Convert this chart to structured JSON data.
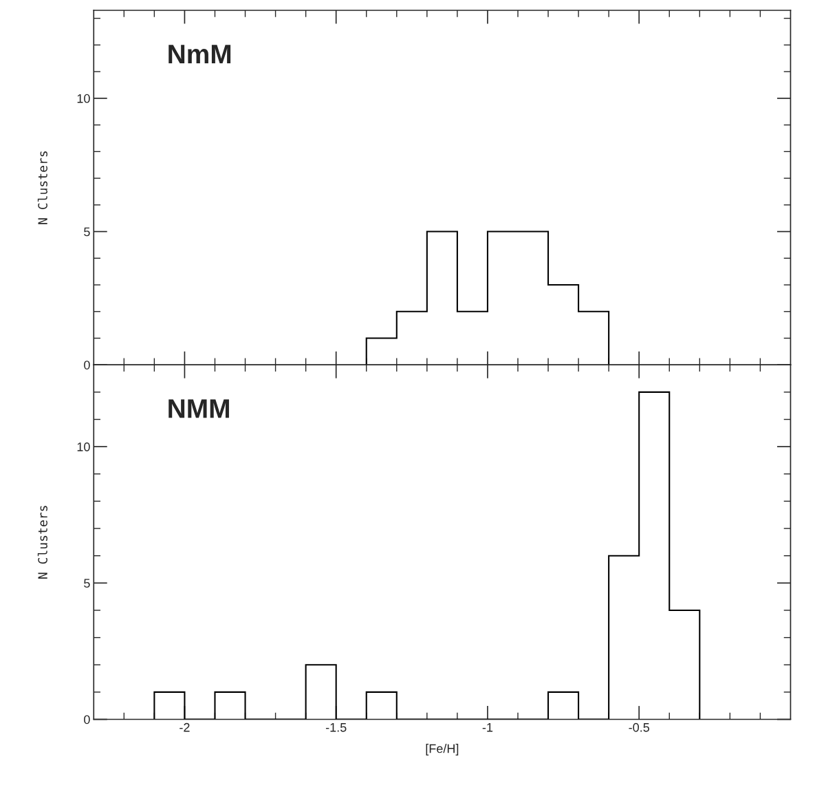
{
  "chart_data": [
    {
      "type": "histogram",
      "ylabel": "N Clusters",
      "annotations": [
        "NmM"
      ],
      "bins": [
        -1.4,
        -1.3,
        -1.2,
        -1.1,
        -1.0,
        -0.9,
        -0.8,
        -0.7,
        -0.6
      ],
      "values": [
        1,
        2,
        5,
        2,
        5,
        5,
        3,
        2
      ],
      "color": "#000000",
      "xlim": [
        -2.3,
        0
      ],
      "ylim": [
        0,
        13.3
      ],
      "xticks": [
        {
          "value": -2.2,
          "label": null
        },
        {
          "value": -2.1,
          "label": null
        },
        {
          "value": -2,
          "label": null
        },
        {
          "value": -1.9,
          "label": null
        },
        {
          "value": -1.8,
          "label": null
        },
        {
          "value": -1.7,
          "label": null
        },
        {
          "value": -1.6,
          "label": null
        },
        {
          "value": -1.5,
          "label": null
        },
        {
          "value": -1.4,
          "label": null
        },
        {
          "value": -1.3,
          "label": null
        },
        {
          "value": -1.2,
          "label": null
        },
        {
          "value": -1.1,
          "label": null
        },
        {
          "value": -1,
          "label": null
        },
        {
          "value": -0.9,
          "label": null
        },
        {
          "value": -0.8,
          "label": null
        },
        {
          "value": -0.7,
          "label": null
        },
        {
          "value": -0.6,
          "label": null
        },
        {
          "value": -0.5,
          "label": null
        },
        {
          "value": -0.4,
          "label": null
        },
        {
          "value": -0.3,
          "label": null
        },
        {
          "value": -0.2,
          "label": null
        },
        {
          "value": -0.1,
          "label": null
        }
      ],
      "yticks": [
        0,
        {
          "value": 1,
          "label": null
        },
        {
          "value": 2,
          "label": null
        },
        {
          "value": 3,
          "label": null
        },
        {
          "value": 4,
          "label": null
        },
        5,
        {
          "value": 6,
          "label": null
        },
        {
          "value": 7,
          "label": null
        },
        {
          "value": 8,
          "label": null
        },
        {
          "value": 9,
          "label": null
        },
        10,
        {
          "value": 11,
          "label": null
        },
        {
          "value": 12,
          "label": null
        },
        {
          "value": 13,
          "label": null
        }
      ],
      "tick_labels": "y",
      "grid": false
    },
    {
      "type": "histogram",
      "ylabel": "N Clusters",
      "xlabel": "[Fe/H]",
      "annotations": [
        "NMM"
      ],
      "bins": [
        -2.1,
        -2.0,
        -1.9,
        -1.8,
        -1.7,
        -1.6,
        -1.5,
        -1.4,
        -1.3,
        -1.2,
        -1.1,
        -1.0,
        -0.9,
        -0.8,
        -0.7,
        -0.6,
        -0.5,
        -0.4,
        -0.3
      ],
      "values": [
        1,
        0,
        1,
        0,
        0,
        2,
        0,
        1,
        0,
        0,
        0,
        0,
        0,
        1,
        0,
        6,
        12,
        4
      ],
      "color": "#000000",
      "xlim": [
        -2.3,
        0
      ],
      "ylim": [
        0,
        13
      ],
      "xticks": [
        {
          "value": -2.2,
          "label": null
        },
        {
          "value": -2.1,
          "label": null
        },
        {
          "value": -2,
          "label": "-2"
        },
        {
          "value": -1.9,
          "label": null
        },
        {
          "value": -1.8,
          "label": null
        },
        {
          "value": -1.7,
          "label": null
        },
        {
          "value": -1.6,
          "label": null
        },
        {
          "value": -1.5,
          "label": "-1.5"
        },
        {
          "value": -1.4,
          "label": null
        },
        {
          "value": -1.3,
          "label": null
        },
        {
          "value": -1.2,
          "label": null
        },
        {
          "value": -1.1,
          "label": null
        },
        {
          "value": -1,
          "label": "-1"
        },
        {
          "value": -0.9,
          "label": null
        },
        {
          "value": -0.8,
          "label": null
        },
        {
          "value": -0.7,
          "label": null
        },
        {
          "value": -0.6,
          "label": null
        },
        {
          "value": -0.5,
          "label": "-0.5"
        },
        {
          "value": -0.4,
          "label": null
        },
        {
          "value": -0.3,
          "label": null
        },
        {
          "value": -0.2,
          "label": null
        },
        {
          "value": -0.1,
          "label": null
        }
      ],
      "yticks": [
        0,
        {
          "value": 1,
          "label": null
        },
        {
          "value": 2,
          "label": null
        },
        {
          "value": 3,
          "label": null
        },
        {
          "value": 4,
          "label": null
        },
        5,
        {
          "value": 6,
          "label": null
        },
        {
          "value": 7,
          "label": null
        },
        {
          "value": 8,
          "label": null
        },
        {
          "value": 9,
          "label": null
        },
        10,
        {
          "value": 11,
          "label": null
        },
        {
          "value": 12,
          "label": null
        }
      ],
      "grid": false
    }
  ]
}
